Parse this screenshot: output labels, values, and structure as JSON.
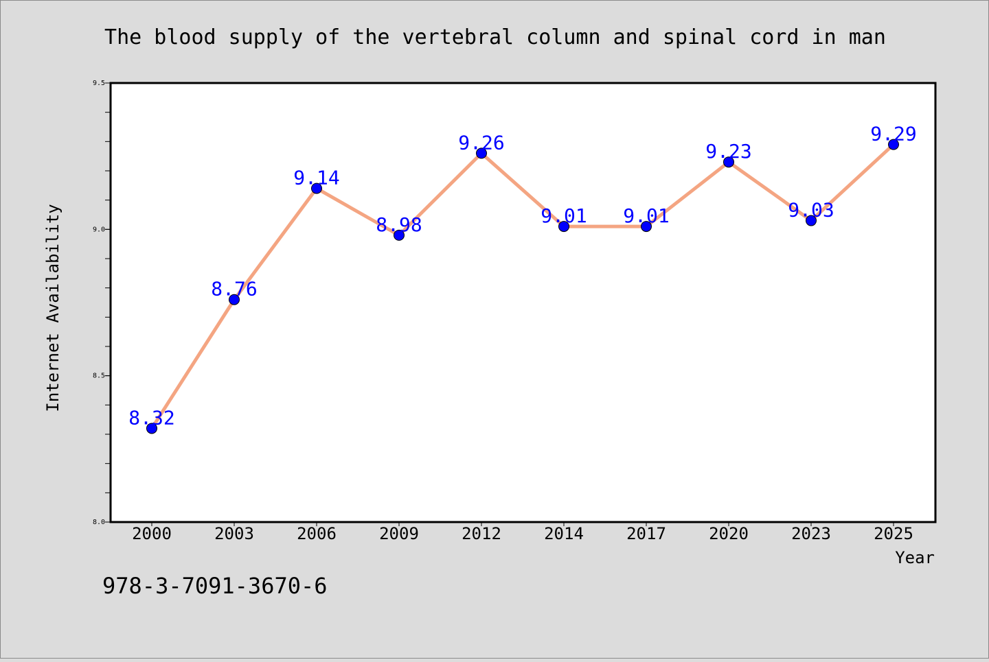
{
  "chart_data": {
    "type": "line",
    "title": "The blood supply of the vertebral column and spinal cord in man",
    "xlabel": "Year",
    "ylabel": "Internet Availability",
    "categories": [
      "2000",
      "2003",
      "2006",
      "2009",
      "2012",
      "2014",
      "2017",
      "2020",
      "2023",
      "2025"
    ],
    "series": [
      {
        "values": [
          8.32,
          8.76,
          9.14,
          8.98,
          9.26,
          9.01,
          9.01,
          9.23,
          9.03,
          9.29
        ]
      }
    ],
    "data_labels": [
      "8.32",
      "8.76",
      "9.14",
      "8.98",
      "9.26",
      "9.01",
      "9.01",
      "9.23",
      "9.03",
      "9.29"
    ],
    "ylim": [
      8.0,
      9.5
    ],
    "y_ticks": [
      "8.0",
      "8.5",
      "9.0",
      "9.5"
    ],
    "y_tick_values": [
      8.0,
      8.5,
      9.0,
      9.5
    ],
    "grid": false,
    "line_color": "#f4a582",
    "marker_color": "#0000ff",
    "label_color": "#0000ff"
  },
  "footer": {
    "isbn": "978-3-7091-3670-6"
  }
}
